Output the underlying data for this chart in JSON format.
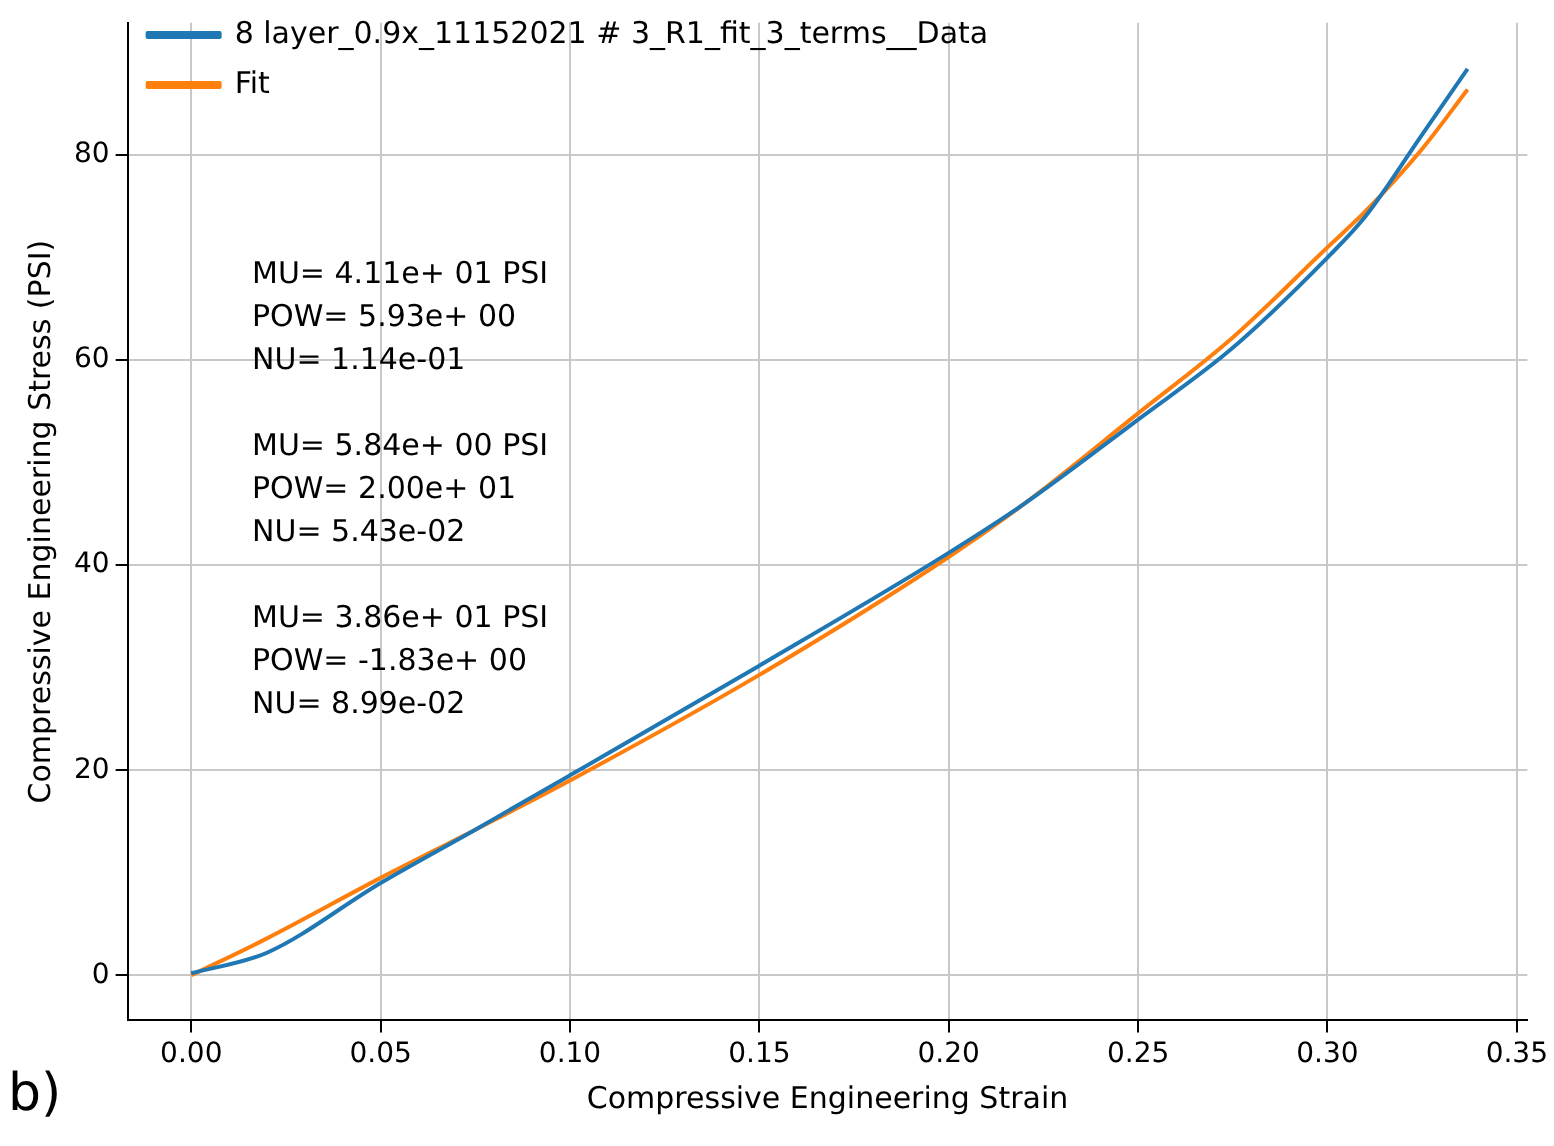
{
  "chart_data": {
    "type": "line",
    "xlabel": "Compressive Engineering Strain",
    "ylabel": "Compressive Engineering Stress (PSI)",
    "xlim": [
      -0.0168,
      0.3528
    ],
    "xticks": [
      {
        "value": 0,
        "label": "0.00"
      },
      0.05,
      {
        "value": 0.1,
        "label": "0.10"
      },
      0.15,
      {
        "value": 0.2,
        "label": "0.20"
      },
      0.25,
      {
        "value": 0.3,
        "label": "0.30"
      },
      0.35
    ],
    "ylim": [
      -4.4,
      92.9
    ],
    "yticks": [
      0,
      20,
      40,
      60,
      80
    ],
    "grid": true,
    "legend": "top left",
    "marker": "none",
    "line_style": "solid",
    "annotations": [
      "MU= 4.11e+ 01 PSI\nPOW= 5.93e+ 00\nNU= 1.14e-01",
      "MU= 5.84e+ 00 PSI\nPOW= 2.00e+ 01\nNU= 5.43e-02",
      "MU= 3.86e+ 01 PSI\nPOW= -1.83e+ 00\nNU= 8.99e-02",
      "b)"
    ],
    "series": [
      {
        "name": "8 layer_0.9x_11152021 # 3_R1_fit_3_terms__Data",
        "color": "#1f77b4",
        "x": [
          0,
          0.02,
          0.05,
          0.075,
          0.1,
          0.15,
          0.2,
          0.22,
          0.25,
          0.275,
          0.3,
          0.31,
          0.325,
          0.337
        ],
        "values": [
          0.2,
          2.2,
          9.0,
          14.2,
          19.5,
          30.2,
          41.2,
          46,
          54.2,
          61.2,
          70.0,
          74,
          82,
          88.4
        ]
      },
      {
        "name": "Fit",
        "color": "#ff7f0e",
        "x": [
          0,
          0.02,
          0.05,
          0.075,
          0.1,
          0.15,
          0.2,
          0.22,
          0.25,
          0.275,
          0.3,
          0.31,
          0.325,
          0.337
        ],
        "values": [
          0,
          3.6,
          9.5,
          14.2,
          19.0,
          29.3,
          40.8,
          46,
          54.8,
          62.2,
          71.0,
          74.5,
          80.6,
          86.4
        ]
      }
    ]
  }
}
